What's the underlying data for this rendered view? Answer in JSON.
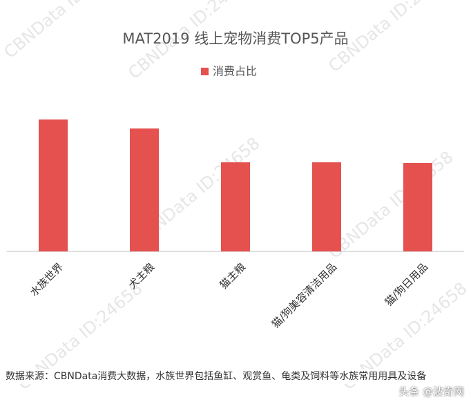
{
  "chart_data": {
    "type": "bar",
    "title": "MAT2019 线上宠物消费TOP5产品",
    "categories": [
      "水族世界",
      "犬主粮",
      "猫主粮",
      "猫/狗美容清洁用品",
      "猫/狗日用品"
    ],
    "series": [
      {
        "name": "消费占比",
        "color": "#e4514f",
        "values": [
          19.1,
          17.8,
          12.9,
          12.9,
          12.8
        ]
      }
    ],
    "ylim": [
      0,
      20
    ],
    "legend": "top",
    "watermark": "CBNData ID:24658"
  },
  "footer": {
    "source": "数据来源：CBNData消费大数据，水族世界包括鱼缸、观赏鱼、龟类及饲料等水族常用用具及设备",
    "credit": "头条 @波奇网"
  }
}
